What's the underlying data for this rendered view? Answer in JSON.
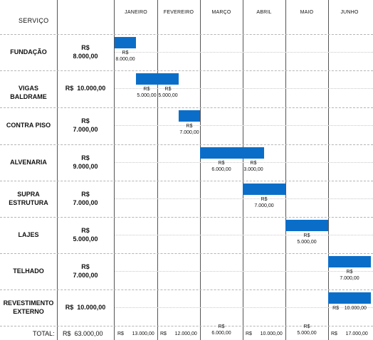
{
  "header": {
    "service_label": "SERVIÇO",
    "months": [
      "JANEIRO",
      "FEVEREIRO",
      "MARÇO",
      "ABRIL",
      "MAIO",
      "JUNHO"
    ]
  },
  "rows": [
    {
      "service": "FUNDAÇÃO",
      "total": "R$\n8.000,00",
      "bars": [
        {
          "month": 0,
          "start": 0.0,
          "end": 0.5,
          "label": "R$\n8.000,00"
        }
      ]
    },
    {
      "service": "VIGAS BALDRAME",
      "total": "R$  10.000,00",
      "bars": [
        {
          "month": 0,
          "start": 0.5,
          "end": 1.0,
          "label": "R$\n5.000,00"
        },
        {
          "month": 1,
          "start": 0.0,
          "end": 0.5,
          "label": "R$\n5.000,00"
        }
      ]
    },
    {
      "service": "CONTRA PISO",
      "total": "R$\n7.000,00",
      "bars": [
        {
          "month": 1,
          "start": 0.5,
          "end": 1.0,
          "label": "R$\n7.000,00"
        }
      ]
    },
    {
      "service": "ALVENARIA",
      "total": "R$\n9.000,00",
      "bars": [
        {
          "month": 2,
          "start": 0.0,
          "end": 1.0,
          "label": "R$\n6.000,00"
        },
        {
          "month": 3,
          "start": 0.0,
          "end": 0.5,
          "label": "R$\n3.000,00"
        }
      ]
    },
    {
      "service": "SUPRA\nESTRUTURA",
      "total": "R$\n7.000,00",
      "bars": [
        {
          "month": 3,
          "start": 0.0,
          "end": 1.0,
          "label": "R$\n7.000,00"
        }
      ]
    },
    {
      "service": "LAJES",
      "total": "R$\n5.000,00",
      "bars": [
        {
          "month": 4,
          "start": 0.0,
          "end": 1.0,
          "label": "R$\n5.000,00"
        }
      ]
    },
    {
      "service": "TELHADO",
      "total": "R$\n7.000,00",
      "bars": [
        {
          "month": 5,
          "start": 0.0,
          "end": 1.0,
          "label": "R$\n7.000,00"
        }
      ]
    },
    {
      "service": "REVESTIMENTO\nEXTERNO",
      "total": "R$  10.000,00",
      "bars": [
        {
          "month": 5,
          "start": 0.0,
          "end": 1.0,
          "label": "R$    10.000,00"
        }
      ]
    }
  ],
  "footer": {
    "total_label": "TOTAL:",
    "total_value": "R$  63.000,00",
    "month_totals": [
      "R$      13.000,00",
      "R$      12.000,00",
      "R$\n6.000,00",
      "R$      10.000,00",
      "R$\n5.000,00",
      "R$      17.000,00"
    ]
  },
  "colors": {
    "bar": "#0a6ec9"
  }
}
